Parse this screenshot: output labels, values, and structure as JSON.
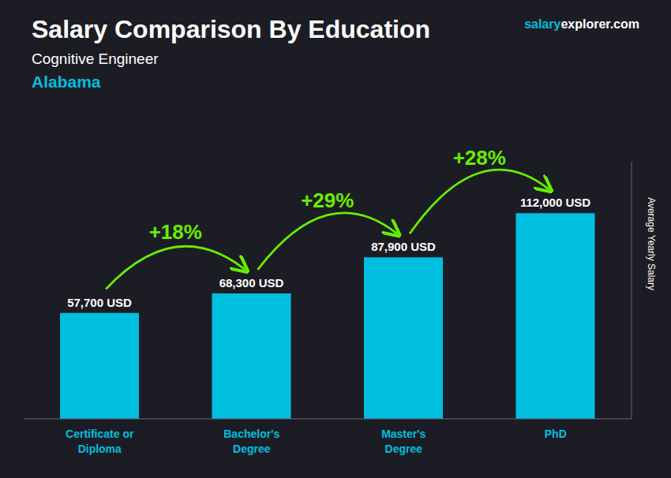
{
  "chart_data": {
    "type": "bar",
    "title": "Salary Comparison By Education",
    "subtitle": "Cognitive Engineer",
    "annotations": [
      "Alabama",
      "salary",
      "explorer.com"
    ],
    "ylabel": "Average Yearly Salary",
    "categories": [
      "Certificate or\nDiploma",
      "Bachelor's\nDegree",
      "Master's\nDegree",
      "PhD"
    ],
    "values": [
      57700,
      68300,
      87900,
      112000
    ],
    "value_labels": [
      "57,700 USD",
      "68,300 USD",
      "87,900 USD",
      "112,000 USD"
    ],
    "data_labels": true,
    "change_labels": {
      "labels": [
        "+18%",
        "+29%",
        "+28%"
      ],
      "color": "#66ee00"
    },
    "color": "#00bfdf",
    "ylim": [
      0,
      140000
    ],
    "grid": false,
    "tick_labels": "x"
  }
}
